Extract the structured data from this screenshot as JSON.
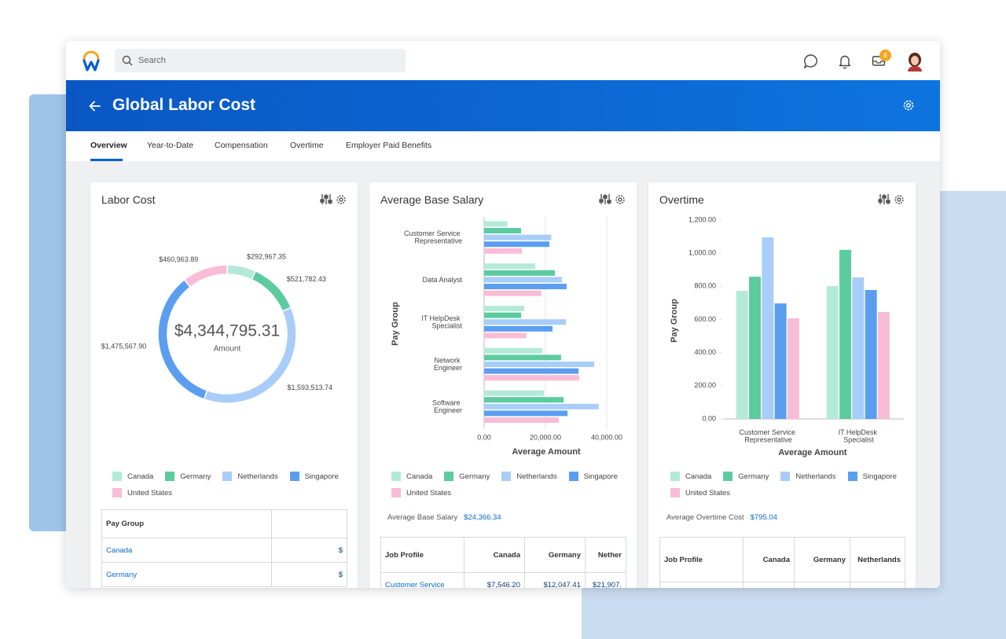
{
  "header": {
    "search_placeholder": "Search",
    "notification_count": 8
  },
  "page": {
    "title": "Global Labor Cost"
  },
  "tabs": [
    "Overview",
    "Year-to-Date",
    "Compensation",
    "Overtime",
    "Employer Paid Benefits"
  ],
  "chart_data": [
    {
      "type": "donut",
      "title": "Labor Cost",
      "categories": [
        "Canada",
        "Germany",
        "Netherlands",
        "Singapore",
        "United States"
      ],
      "values": [
        292967.35,
        521782.43,
        1593513.74,
        1475567.9,
        460963.89
      ],
      "value_labels": [
        "$292,967.35",
        "$521,782.43",
        "$1,593,513.74",
        "$1,475,567.90",
        "$460,963.89"
      ],
      "colors": [
        "#b3ead7",
        "#5ccba0",
        "#a9cdf9",
        "#5b9ef0",
        "#f9bcd6"
      ],
      "center_label": "$4,344,795.31",
      "center_caption": "Amount",
      "legend": "bottom"
    },
    {
      "type": "barh",
      "title": "Average Base Salary",
      "categories": [
        "Customer Service Representative",
        "Data Analyst",
        "IT HelpDesk Specialist",
        "Network Engineer",
        "Software Engineer"
      ],
      "series": [
        {
          "name": "Canada",
          "color": "#b3ead7",
          "values": [
            7546.2,
            16700,
            13100,
            19000,
            19500
          ]
        },
        {
          "name": "Germany",
          "color": "#5ccba0",
          "values": [
            12047.41,
            23100,
            12100,
            25100,
            25900
          ]
        },
        {
          "name": "Netherlands",
          "color": "#a9cdf9",
          "values": [
            21907,
            25400,
            26700,
            35900,
            37400
          ]
        },
        {
          "name": "Singapore",
          "color": "#5b9ef0",
          "values": [
            21300,
            26900,
            22300,
            30800,
            27200
          ]
        },
        {
          "name": "United States",
          "color": "#f9bcd6",
          "values": [
            12300,
            18700,
            13800,
            31000,
            24400
          ]
        }
      ],
      "xlim": [
        0,
        40000
      ],
      "xticks": [
        {
          "value": 0,
          "label": "0.00"
        },
        {
          "value": 20000,
          "label": "20,000.00"
        },
        {
          "value": 40000,
          "label": "40,000.00"
        }
      ],
      "xlabel": "Average Amount",
      "ylabel": "Pay Group",
      "grid": true,
      "legend": "bottom",
      "summary_label": "Average Base Salary",
      "summary_value": "$24,366.34"
    },
    {
      "type": "bar",
      "title": "Overtime",
      "categories": [
        "Customer Service Representative",
        "IT HelpDesk Specialist"
      ],
      "series": [
        {
          "name": "Canada",
          "color": "#b3ead7",
          "values": [
            773,
            802
          ]
        },
        {
          "name": "Germany",
          "color": "#5ccba0",
          "values": [
            858,
            1020
          ]
        },
        {
          "name": "Netherlands",
          "color": "#a9cdf9",
          "values": [
            1096,
            854
          ]
        },
        {
          "name": "Singapore",
          "color": "#5b9ef0",
          "values": [
            697,
            778
          ]
        },
        {
          "name": "United States",
          "color": "#f9bcd6",
          "values": [
            607,
            645
          ]
        }
      ],
      "ylim": [
        0,
        1200
      ],
      "yticks": [
        {
          "value": 0,
          "label": "0.00"
        },
        {
          "value": 200,
          "label": "200.00"
        },
        {
          "value": 400,
          "label": "400.00"
        },
        {
          "value": 600,
          "label": "600.00"
        },
        {
          "value": 800,
          "label": "800.00"
        },
        {
          "value": 1000,
          "label": "1,000.00"
        },
        {
          "value": 1200,
          "label": "1,200.00"
        }
      ],
      "xlabel": "Average Amount",
      "ylabel": "Pay Group",
      "grid": false,
      "legend": "bottom",
      "summary_label": "Average Overtime Cost",
      "summary_value": "$795.04"
    }
  ],
  "tables": [
    {
      "header": [
        "Pay Group"
      ],
      "rows": [
        [
          "Canada",
          "$"
        ],
        [
          "Germany",
          "$"
        ]
      ]
    },
    {
      "header": [
        "Job Profile",
        "Canada",
        "Germany",
        "Nether"
      ],
      "rows": [
        [
          "Customer Service",
          "$7,546.20",
          "$12,047.41",
          "$21,907."
        ]
      ]
    },
    {
      "header": [
        "Job Profile",
        "Canada",
        "Germany",
        "Netherlands"
      ]
    }
  ]
}
